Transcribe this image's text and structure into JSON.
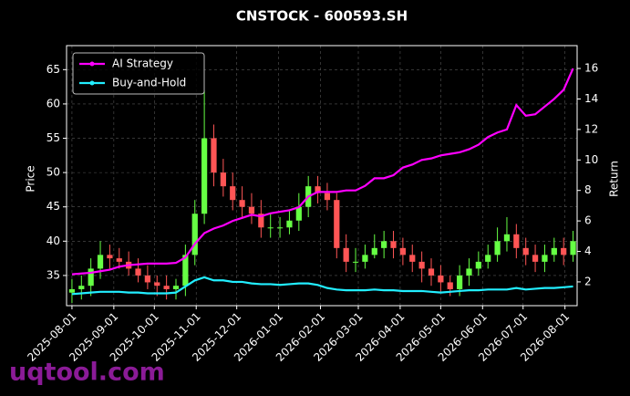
{
  "chart_data": {
    "type": "candlestick",
    "title": "CNSTOCK - 600593.SH",
    "y_label": "Price",
    "y2_label": "Return",
    "watermark": "uqtool.com",
    "x": [
      "2025-08-01",
      "2025-08-08",
      "2025-08-15",
      "2025-08-22",
      "2025-08-29",
      "2025-09-05",
      "2025-09-12",
      "2025-09-19",
      "2025-09-26",
      "2025-10-03",
      "2025-10-10",
      "2025-10-17",
      "2025-10-24",
      "2025-10-31",
      "2025-11-07",
      "2025-11-14",
      "2025-11-21",
      "2025-11-28",
      "2025-12-05",
      "2025-12-12",
      "2025-12-19",
      "2025-12-26",
      "2026-01-02",
      "2026-01-09",
      "2026-01-16",
      "2026-01-23",
      "2026-01-30",
      "2026-02-06",
      "2026-02-13",
      "2026-02-20",
      "2026-02-27",
      "2026-03-06",
      "2026-03-13",
      "2026-03-20",
      "2026-03-27",
      "2026-04-03",
      "2026-04-10",
      "2026-04-17",
      "2026-04-24",
      "2026-05-01",
      "2026-05-08",
      "2026-05-15",
      "2026-05-22",
      "2026-05-29",
      "2026-06-05",
      "2026-06-12",
      "2026-06-19",
      "2026-06-26",
      "2026-07-03",
      "2026-07-10",
      "2026-07-17",
      "2026-07-24",
      "2026-07-31",
      "2026-08-07"
    ],
    "open": [
      32.5,
      33,
      33.5,
      36,
      38,
      37.5,
      37,
      36,
      35,
      34,
      33.5,
      33,
      33.5,
      38,
      44,
      55,
      50,
      48,
      46,
      45,
      44,
      42,
      42,
      42,
      43,
      45,
      48,
      47,
      46,
      39,
      37,
      37,
      38,
      39,
      40,
      39,
      38,
      37,
      36,
      35,
      34,
      33,
      35,
      36,
      37,
      38,
      40,
      41,
      39,
      38,
      37,
      38,
      39,
      38
    ],
    "high": [
      34.5,
      35,
      37.5,
      40,
      39.5,
      39,
      38.5,
      37.5,
      36.5,
      35,
      35,
      34.5,
      39.5,
      46,
      62,
      57,
      52,
      50,
      48,
      47,
      46,
      44,
      43.5,
      44.5,
      47,
      49.5,
      49.5,
      48.5,
      47,
      41,
      39,
      39.5,
      41,
      41.5,
      41.5,
      40.5,
      39.5,
      38.5,
      37.5,
      36.5,
      35,
      36.5,
      37.5,
      38.5,
      39.5,
      42,
      43.5,
      42.5,
      40.5,
      39.5,
      39.5,
      40.5,
      40.5,
      41.5
    ],
    "low": [
      31,
      31.5,
      32,
      34.5,
      36,
      36,
      35,
      34,
      33,
      32,
      31.5,
      31.5,
      32,
      36.5,
      42.5,
      48,
      46.5,
      44.5,
      43.5,
      42.5,
      40.5,
      40.5,
      40.5,
      41,
      41.5,
      43.5,
      45.5,
      44.5,
      37.5,
      35.5,
      35.5,
      36,
      37.5,
      37.5,
      37.5,
      36.5,
      35.5,
      34,
      33.5,
      32.5,
      32,
      32,
      33.5,
      35,
      36,
      37,
      38.5,
      37.5,
      36.5,
      35.5,
      35.5,
      37,
      36.5,
      37
    ],
    "close": [
      33,
      33.5,
      36,
      38,
      37.5,
      37,
      36,
      35,
      34,
      33.5,
      33,
      33.5,
      38,
      44,
      55,
      50,
      48,
      46,
      45,
      44,
      42,
      42,
      42,
      43,
      45,
      48,
      47,
      46,
      39,
      37,
      37,
      38,
      39,
      40,
      39,
      38,
      37,
      36,
      35,
      34,
      33,
      35,
      36,
      37,
      38,
      40,
      41,
      39,
      38,
      37,
      38,
      39,
      38,
      40
    ],
    "up_color": "#66ff44",
    "down_color": "#ff5555",
    "series": [
      {
        "name": "AI Strategy",
        "color": "#ff00ff",
        "axis": "y2",
        "values": [
          2.5,
          2.55,
          2.6,
          2.7,
          2.8,
          3.0,
          3.1,
          3.15,
          3.2,
          3.2,
          3.2,
          3.25,
          3.6,
          4.5,
          5.2,
          5.5,
          5.7,
          6.0,
          6.2,
          6.4,
          6.3,
          6.5,
          6.6,
          6.7,
          6.9,
          7.6,
          7.9,
          7.9,
          7.9,
          8.0,
          8.0,
          8.3,
          8.8,
          8.8,
          9.0,
          9.5,
          9.7,
          10.0,
          10.1,
          10.3,
          10.4,
          10.5,
          10.7,
          11.0,
          11.5,
          11.8,
          12.0,
          13.6,
          12.9,
          13.0,
          13.5,
          14.0,
          14.6,
          16.0
        ]
      },
      {
        "name": "Buy-and-Hold",
        "color": "#22eeff",
        "axis": "y2",
        "values": [
          1.2,
          1.25,
          1.3,
          1.35,
          1.35,
          1.35,
          1.3,
          1.3,
          1.25,
          1.25,
          1.25,
          1.3,
          1.7,
          2.1,
          2.3,
          2.1,
          2.1,
          2.0,
          2.0,
          1.9,
          1.85,
          1.85,
          1.8,
          1.85,
          1.9,
          1.9,
          1.8,
          1.6,
          1.5,
          1.45,
          1.45,
          1.45,
          1.5,
          1.45,
          1.45,
          1.4,
          1.4,
          1.4,
          1.35,
          1.3,
          1.35,
          1.4,
          1.45,
          1.45,
          1.5,
          1.5,
          1.5,
          1.6,
          1.5,
          1.55,
          1.6,
          1.6,
          1.65,
          1.7
        ]
      }
    ],
    "xlim": [
      "2025-07-28",
      "2026-08-10"
    ],
    "xticks": [
      "2025-08-01",
      "2025-09-01",
      "2025-10-01",
      "2025-11-01",
      "2025-12-01",
      "2026-01-01",
      "2026-02-01",
      "2026-03-01",
      "2026-04-01",
      "2026-05-01",
      "2026-06-01",
      "2026-07-01",
      "2026-08-01"
    ],
    "ylim": [
      30.6,
      68.5
    ],
    "yticks": [
      35,
      40,
      45,
      50,
      55,
      60,
      65
    ],
    "y2lim": [
      0.44,
      17.5
    ],
    "y2ticks": [
      2,
      4,
      6,
      8,
      10,
      12,
      14,
      16
    ],
    "grid": true,
    "legend": "upper left"
  }
}
